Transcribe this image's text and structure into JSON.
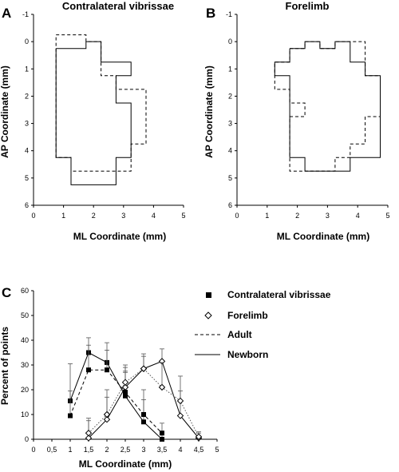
{
  "chart_data": [
    {
      "id": "A",
      "type": "outline-map",
      "panel_label": "A",
      "title": "Contralateral vibrissae",
      "xlabel": "ML Coordinate (mm)",
      "ylabel": "AP Coordinate (mm)",
      "xlim": [
        0,
        5
      ],
      "ylim": [
        -1,
        6
      ],
      "y_inverted": true,
      "xticks": [
        "0",
        "1",
        "2",
        "3",
        "4",
        "5"
      ],
      "yticks": [
        "-1",
        "0",
        "1",
        "2",
        "3",
        "4",
        "5",
        "6"
      ],
      "series": [
        {
          "name": "Adult",
          "style": "dashed",
          "points": [
            [
              0.75,
              -0.25
            ],
            [
              1.75,
              -0.25
            ],
            [
              1.75,
              0
            ],
            [
              2.25,
              0
            ],
            [
              2.25,
              1.25
            ],
            [
              2.75,
              1.25
            ],
            [
              2.75,
              1.75
            ],
            [
              3.75,
              1.75
            ],
            [
              3.75,
              3.75
            ],
            [
              3.25,
              3.75
            ],
            [
              3.25,
              4.75
            ],
            [
              1.25,
              4.75
            ],
            [
              1.25,
              4.25
            ],
            [
              0.75,
              4.25
            ],
            [
              0.75,
              -0.25
            ]
          ]
        },
        {
          "name": "Newborn",
          "style": "solid",
          "points": [
            [
              0.75,
              0.25
            ],
            [
              1.75,
              0.25
            ],
            [
              1.75,
              0
            ],
            [
              2.25,
              0
            ],
            [
              2.25,
              0.75
            ],
            [
              2.75,
              0.75
            ],
            [
              2.75,
              0.75
            ],
            [
              3.25,
              0.75
            ],
            [
              3.25,
              1.25
            ],
            [
              2.75,
              1.25
            ],
            [
              2.75,
              2.25
            ],
            [
              3.25,
              2.25
            ],
            [
              3.25,
              4.25
            ],
            [
              2.75,
              4.25
            ],
            [
              2.75,
              5.25
            ],
            [
              1.25,
              5.25
            ],
            [
              1.25,
              4.25
            ],
            [
              0.75,
              4.25
            ],
            [
              0.75,
              0.25
            ]
          ]
        }
      ]
    },
    {
      "id": "B",
      "type": "outline-map",
      "panel_label": "B",
      "title": "Forelimb",
      "xlabel": "ML Coordinate (mm)",
      "ylabel": "AP Coordinate (mm)",
      "xlim": [
        0,
        5
      ],
      "ylim": [
        -1,
        6
      ],
      "y_inverted": true,
      "xticks": [
        "0",
        "1",
        "2",
        "3",
        "4",
        "5"
      ],
      "yticks": [
        "-1",
        "0",
        "1",
        "2",
        "3",
        "4",
        "5",
        "6"
      ],
      "series": [
        {
          "name": "Adult",
          "style": "dashed",
          "points": [
            [
              1.75,
              0.25
            ],
            [
              2.25,
              0.25
            ],
            [
              2.25,
              0
            ],
            [
              2.75,
              0
            ],
            [
              2.75,
              0.25
            ],
            [
              3.25,
              0.25
            ],
            [
              3.25,
              0
            ],
            [
              4.25,
              0
            ],
            [
              4.25,
              1.25
            ],
            [
              4.75,
              1.25
            ],
            [
              4.75,
              2.75
            ],
            [
              4.25,
              2.75
            ],
            [
              4.25,
              3.75
            ],
            [
              3.75,
              3.75
            ],
            [
              3.75,
              4.25
            ],
            [
              3.25,
              4.25
            ],
            [
              3.25,
              4.75
            ],
            [
              1.75,
              4.75
            ],
            [
              1.75,
              3.25
            ],
            [
              1.75,
              2.75
            ],
            [
              2.25,
              2.75
            ],
            [
              2.25,
              2.25
            ],
            [
              1.75,
              2.25
            ],
            [
              1.75,
              1.75
            ],
            [
              1.25,
              1.75
            ],
            [
              1.25,
              0.75
            ],
            [
              1.75,
              0.75
            ],
            [
              1.75,
              0.25
            ]
          ]
        },
        {
          "name": "Newborn",
          "style": "solid",
          "points": [
            [
              1.75,
              0.25
            ],
            [
              2.25,
              0.25
            ],
            [
              2.25,
              0
            ],
            [
              2.75,
              0
            ],
            [
              2.75,
              0.25
            ],
            [
              3.25,
              0.25
            ],
            [
              3.25,
              0
            ],
            [
              3.75,
              0
            ],
            [
              3.75,
              0.75
            ],
            [
              4.25,
              0.75
            ],
            [
              4.25,
              1.25
            ],
            [
              4.75,
              1.25
            ],
            [
              4.75,
              4.25
            ],
            [
              3.75,
              4.25
            ],
            [
              3.75,
              4.75
            ],
            [
              2.25,
              4.75
            ],
            [
              2.25,
              4.25
            ],
            [
              1.75,
              4.25
            ],
            [
              1.75,
              1.75
            ],
            [
              1.75,
              1.25
            ],
            [
              1.25,
              1.25
            ],
            [
              1.25,
              0.75
            ],
            [
              1.75,
              0.75
            ],
            [
              1.75,
              0.25
            ]
          ]
        }
      ]
    },
    {
      "id": "C",
      "type": "line",
      "panel_label": "C",
      "xlabel": "ML Coordinate (mm)",
      "ylabel": "Percent of points",
      "xlim": [
        0,
        5
      ],
      "ylim": [
        0,
        60
      ],
      "xticks": [
        "0",
        "0,5",
        "1",
        "1,5",
        "2",
        "2,5",
        "3",
        "3,5",
        "4",
        "4,5",
        "5"
      ],
      "yticks": [
        "0",
        "10",
        "20",
        "30",
        "40",
        "50",
        "60"
      ],
      "x": [
        1,
        1.5,
        2,
        2.5,
        3,
        3.5,
        4,
        4.5
      ],
      "series": [
        {
          "name": "Contralateral vibrissae",
          "age": "Newborn",
          "marker": "filled-square",
          "line": "solid",
          "x": [
            1,
            1.5,
            2,
            2.5,
            3,
            3.5
          ],
          "values": [
            15.5,
            35,
            31,
            17.5,
            7,
            0
          ],
          "error": [
            15,
            6,
            8,
            10,
            9,
            3
          ]
        },
        {
          "name": "Contralateral vibrissae",
          "age": "Adult",
          "marker": "filled-square",
          "line": "dashed",
          "x": [
            1,
            1.5,
            2,
            2.5,
            3,
            3.5
          ],
          "values": [
            9.5,
            28,
            28,
            19,
            10,
            2.5
          ],
          "error": [
            10,
            10,
            8,
            8,
            10,
            4
          ]
        },
        {
          "name": "Forelimb",
          "age": "Newborn",
          "marker": "open-diamond",
          "line": "solid",
          "x": [
            1.5,
            2,
            2.5,
            3,
            3.5,
            4,
            4.5
          ],
          "values": [
            0.5,
            8,
            21,
            28.5,
            31.5,
            9.5,
            0.5
          ],
          "error": [
            8,
            9,
            8,
            5,
            5,
            10,
            2
          ]
        },
        {
          "name": "Forelimb",
          "age": "Adult",
          "marker": "open-diamond",
          "line": "dotted",
          "x": [
            1.5,
            2,
            2.5,
            3,
            3.5,
            4,
            4.5
          ],
          "values": [
            2.5,
            10,
            23,
            28.5,
            21,
            15.5,
            1
          ],
          "error": [
            5,
            10,
            7,
            6,
            10,
            10,
            2
          ]
        }
      ],
      "legend": [
        {
          "marker": "filled-square",
          "label": "Contralateral vibrissae"
        },
        {
          "marker": "open-diamond",
          "label": "Forelimb"
        },
        {
          "marker": "dashed-line",
          "label": "Adult"
        },
        {
          "marker": "solid-line",
          "label": "Newborn"
        }
      ]
    }
  ],
  "colors": {
    "ink": "#000000",
    "grey_line": "#555555",
    "background": "#ffffff"
  }
}
